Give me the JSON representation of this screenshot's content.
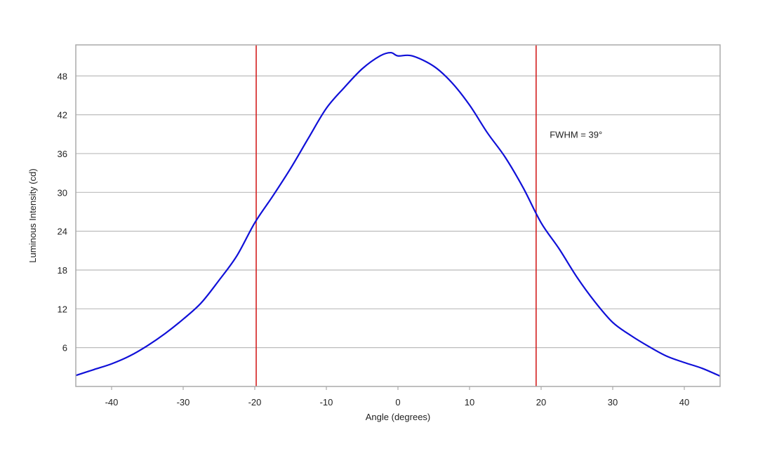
{
  "chart_data": {
    "type": "line",
    "title": "",
    "xlabel": "Angle (degrees)",
    "ylabel": "Luminous Intensity (cd)",
    "xlim": [
      -45,
      45
    ],
    "ylim": [
      0,
      52.8
    ],
    "xticks": [
      -40,
      -30,
      -20,
      -10,
      0,
      10,
      20,
      30,
      40
    ],
    "yticks": [
      6,
      12,
      18,
      24,
      30,
      36,
      42,
      48
    ],
    "grid": "horizontal",
    "series": [
      {
        "color": "#1010d8",
        "x": [
          -45,
          -42.5,
          -40,
          -37.5,
          -35,
          -32.5,
          -30,
          -27.5,
          -25,
          -22.5,
          -20,
          -17.5,
          -15,
          -12.5,
          -10,
          -7.5,
          -5,
          -2.5,
          -1,
          0,
          2,
          5,
          7.5,
          10,
          12.5,
          15,
          17.5,
          20,
          22.5,
          25,
          27.5,
          30,
          32.5,
          35,
          37.5,
          40,
          42.5,
          45
        ],
        "y": [
          1.7,
          2.6,
          3.5,
          4.7,
          6.3,
          8.2,
          10.4,
          12.9,
          16.4,
          20.2,
          25.3,
          29.4,
          33.7,
          38.4,
          43.0,
          46.2,
          49.1,
          51.1,
          51.6,
          51.1,
          51.1,
          49.5,
          47.0,
          43.5,
          39.2,
          35.4,
          30.7,
          25.3,
          21.3,
          16.9,
          13.1,
          9.9,
          7.9,
          6.2,
          4.7,
          3.7,
          2.8,
          1.6
        ]
      }
    ],
    "vlines": [
      {
        "x": -19.8,
        "color": "#d42020"
      },
      {
        "x": 19.3,
        "color": "#d42020"
      }
    ],
    "annotations": [
      {
        "text": "FWHM = 39°",
        "x": 21.2,
        "y": 39
      }
    ]
  }
}
